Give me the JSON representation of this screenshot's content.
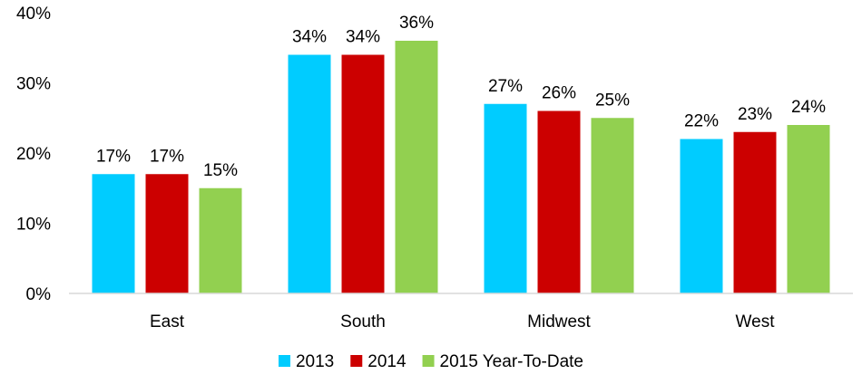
{
  "chart_data": {
    "type": "bar",
    "categories": [
      "East",
      "South",
      "Midwest",
      "West"
    ],
    "series": [
      {
        "name": "2013",
        "color": "#00CCFF",
        "values": [
          17,
          34,
          27,
          22
        ]
      },
      {
        "name": "2014",
        "color": "#CC0000",
        "values": [
          17,
          34,
          26,
          23
        ]
      },
      {
        "name": "2015 Year-To-Date",
        "color": "#92D050",
        "values": [
          15,
          36,
          25,
          24
        ]
      }
    ],
    "ylim": [
      0,
      40
    ],
    "yticks": [
      0,
      10,
      20,
      30,
      40
    ],
    "ytick_format": "{v}%",
    "data_label_format": "{v}%",
    "grid": false,
    "legend_position": "bottom",
    "title": "",
    "xlabel": "",
    "ylabel": ""
  }
}
